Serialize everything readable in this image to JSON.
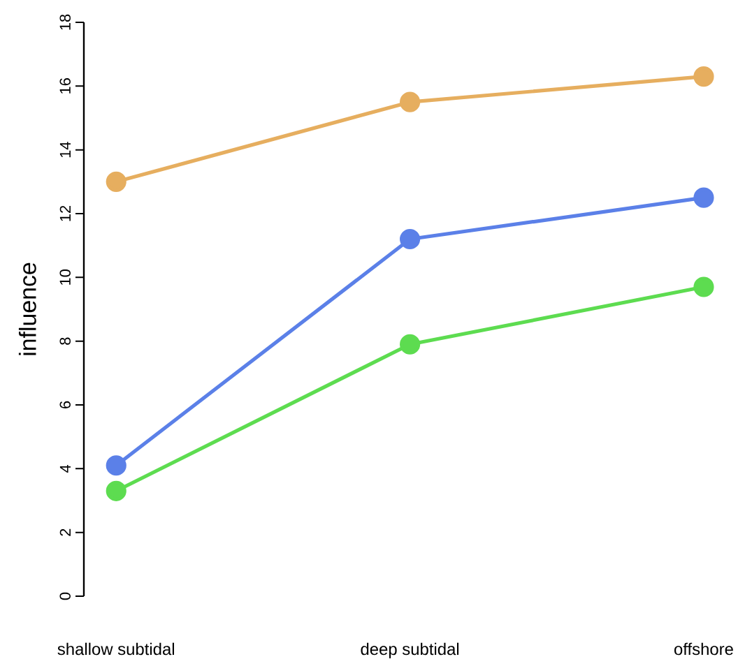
{
  "chart_data": {
    "type": "line",
    "ylabel": "influence",
    "categories": [
      "shallow subtidal",
      "deep subtidal",
      "offshore"
    ],
    "series": [
      {
        "color": "#e6ae5f",
        "values": [
          13.0,
          15.5,
          16.3
        ]
      },
      {
        "color": "#5b80e8",
        "values": [
          4.1,
          11.2,
          12.5
        ]
      },
      {
        "color": "#5ddc50",
        "values": [
          3.3,
          7.9,
          9.7
        ]
      }
    ],
    "ylim": [
      0,
      18
    ],
    "yticks": [
      0,
      2,
      4,
      6,
      8,
      10,
      12,
      14,
      16,
      18
    ],
    "marker": "circle",
    "line_style": "solid",
    "grid": false
  }
}
